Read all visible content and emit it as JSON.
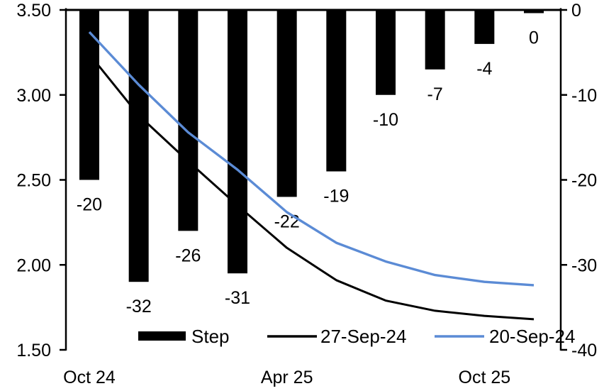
{
  "chart_data": {
    "type": "combo_bar_line",
    "title": "",
    "n_points": 10,
    "series": [
      {
        "name": "Step",
        "type": "bar",
        "axis": "right",
        "color": "#000000",
        "values": [
          -20,
          -32,
          -26,
          -31,
          -22,
          -19,
          -10,
          -7,
          -4,
          0
        ],
        "labels": [
          "-20",
          "-32",
          "-26",
          "-31",
          "-22",
          "-19",
          "-10",
          "-7",
          "-4",
          "0"
        ]
      },
      {
        "name": "27-Sep-24",
        "type": "line",
        "axis": "left",
        "color": "#000000",
        "values": [
          3.24,
          2.88,
          2.61,
          2.35,
          2.1,
          1.91,
          1.79,
          1.73,
          1.7,
          1.68
        ]
      },
      {
        "name": "20-Sep-24",
        "type": "line",
        "axis": "left",
        "color": "#5B8BD5",
        "values": [
          3.37,
          3.06,
          2.78,
          2.56,
          2.31,
          2.13,
          2.02,
          1.94,
          1.9,
          1.88
        ]
      }
    ],
    "x_axis": {
      "tick_labels": [
        {
          "label": "Oct 24",
          "point": 0
        },
        {
          "label": "Apr 25",
          "point": 4
        },
        {
          "label": "Oct 25",
          "point": 8
        }
      ]
    },
    "left_axis": {
      "min": 1.5,
      "max": 3.5,
      "ticks": [
        "3.50",
        "3.00",
        "2.50",
        "2.00",
        "1.50"
      ]
    },
    "right_axis": {
      "min": -40,
      "max": 0,
      "ticks": [
        "0",
        "-10",
        "-20",
        "-30",
        "-40"
      ]
    },
    "legend": {
      "position": "bottom",
      "entries": [
        {
          "label": "Step",
          "swatch": "bar",
          "color": "#000000"
        },
        {
          "label": "27-Sep-24",
          "swatch": "line",
          "color": "#000000"
        },
        {
          "label": "20-Sep-24",
          "swatch": "line",
          "color": "#5B8BD5"
        }
      ]
    },
    "grid": false
  }
}
